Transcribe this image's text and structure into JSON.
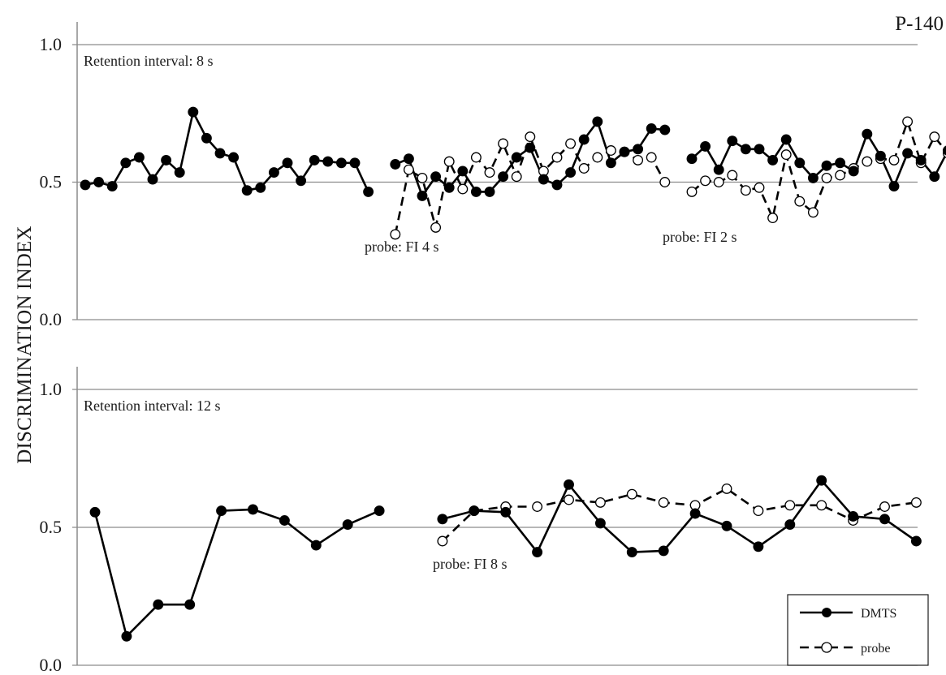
{
  "corner_label": "P-140",
  "ylabel": "DISCRIMINATION INDEX",
  "chart_data": [
    {
      "type": "line",
      "panel": "top",
      "ylim": [
        0,
        1.0
      ],
      "yticks": [
        "0.0",
        "0.5",
        "1.0"
      ],
      "grid": true,
      "annotations": {
        "title": "Retention interval: 8 s",
        "probe_labels": [
          "probe: FI 4 s",
          "probe: FI 2 s"
        ]
      },
      "series": [
        {
          "name": "DMTS",
          "segments": [
            [
              [
                1,
                0.49
              ],
              [
                2,
                0.5
              ],
              [
                3,
                0.485
              ],
              [
                4,
                0.57
              ],
              [
                5,
                0.59
              ],
              [
                6,
                0.51
              ],
              [
                7,
                0.58
              ],
              [
                8,
                0.535
              ],
              [
                9,
                0.755
              ],
              [
                10,
                0.66
              ],
              [
                11,
                0.605
              ],
              [
                12,
                0.59
              ],
              [
                13,
                0.47
              ],
              [
                14,
                0.48
              ],
              [
                15,
                0.535
              ],
              [
                16,
                0.57
              ],
              [
                17,
                0.505
              ],
              [
                18,
                0.58
              ],
              [
                19,
                0.575
              ],
              [
                20,
                0.57
              ],
              [
                21,
                0.57
              ],
              [
                22,
                0.465
              ]
            ],
            [
              [
                24,
                0.565
              ],
              [
                25,
                0.585
              ],
              [
                26,
                0.45
              ],
              [
                27,
                0.52
              ],
              [
                28,
                0.48
              ],
              [
                29,
                0.54
              ],
              [
                30,
                0.465
              ],
              [
                31,
                0.465
              ],
              [
                32,
                0.52
              ],
              [
                33,
                0.59
              ],
              [
                34,
                0.625
              ],
              [
                35,
                0.51
              ],
              [
                36,
                0.49
              ],
              [
                37,
                0.535
              ],
              [
                38,
                0.655
              ],
              [
                39,
                0.72
              ],
              [
                40,
                0.57
              ],
              [
                41,
                0.61
              ],
              [
                42,
                0.62
              ],
              [
                43,
                0.695
              ],
              [
                44,
                0.69
              ]
            ],
            [
              [
                46,
                0.585
              ],
              [
                47,
                0.63
              ],
              [
                48,
                0.545
              ],
              [
                49,
                0.65
              ],
              [
                50,
                0.62
              ],
              [
                51,
                0.62
              ],
              [
                52,
                0.58
              ],
              [
                53,
                0.655
              ],
              [
                54,
                0.57
              ],
              [
                55,
                0.515
              ],
              [
                56,
                0.56
              ],
              [
                57,
                0.57
              ],
              [
                58,
                0.54
              ],
              [
                59,
                0.675
              ],
              [
                60,
                0.595
              ],
              [
                61,
                0.485
              ],
              [
                62,
                0.605
              ],
              [
                63,
                0.58
              ],
              [
                64,
                0.52
              ],
              [
                65,
                0.615
              ]
            ]
          ]
        },
        {
          "name": "probe",
          "segments": [
            [
              [
                24,
                0.31
              ],
              [
                25,
                0.545
              ],
              [
                26,
                0.515
              ],
              [
                27,
                0.335
              ],
              [
                28,
                0.575
              ],
              [
                29,
                0.475
              ],
              [
                30,
                0.59
              ],
              [
                31,
                0.535
              ],
              [
                32,
                0.64
              ],
              [
                33,
                0.52
              ],
              [
                34,
                0.665
              ],
              [
                35,
                0.54
              ],
              [
                36,
                0.59
              ],
              [
                37,
                0.64
              ],
              [
                38,
                0.55
              ],
              [
                39,
                0.59
              ],
              [
                40,
                0.615
              ],
              [
                41,
                0.61
              ],
              [
                42,
                0.58
              ],
              [
                43,
                0.59
              ],
              [
                44,
                0.5
              ]
            ],
            [
              [
                46,
                0.465
              ],
              [
                47,
                0.505
              ],
              [
                48,
                0.5
              ],
              [
                49,
                0.525
              ],
              [
                50,
                0.47
              ],
              [
                51,
                0.48
              ],
              [
                52,
                0.37
              ],
              [
                53,
                0.6
              ],
              [
                54,
                0.43
              ],
              [
                55,
                0.39
              ],
              [
                56,
                0.515
              ],
              [
                57,
                0.525
              ],
              [
                58,
                0.55
              ],
              [
                59,
                0.575
              ],
              [
                60,
                0.585
              ],
              [
                61,
                0.58
              ],
              [
                62,
                0.72
              ],
              [
                63,
                0.57
              ],
              [
                64,
                0.665
              ],
              [
                65,
                0.605
              ]
            ]
          ]
        }
      ]
    },
    {
      "type": "line",
      "panel": "bottom",
      "ylim": [
        0,
        1.0
      ],
      "yticks": [
        "0.0",
        "0.5",
        "1.0"
      ],
      "grid": true,
      "annotations": {
        "title": "Retention interval: 12 s",
        "probe_labels": [
          "probe: FI 8 s"
        ]
      },
      "legend": {
        "placement": "bottom-right",
        "entries": [
          "DMTS",
          "probe"
        ]
      },
      "series": [
        {
          "name": "DMTS",
          "segments": [
            [
              [
                1,
                0.555
              ],
              [
                2,
                0.105
              ],
              [
                3,
                0.22
              ],
              [
                4,
                0.22
              ],
              [
                5,
                0.56
              ],
              [
                6,
                0.565
              ],
              [
                7,
                0.525
              ],
              [
                8,
                0.435
              ],
              [
                9,
                0.51
              ],
              [
                10,
                0.56
              ]
            ],
            [
              [
                12,
                0.53
              ],
              [
                13,
                0.56
              ],
              [
                14,
                0.555
              ],
              [
                15,
                0.41
              ],
              [
                16,
                0.655
              ],
              [
                17,
                0.515
              ],
              [
                18,
                0.41
              ],
              [
                19,
                0.415
              ],
              [
                20,
                0.55
              ],
              [
                21,
                0.505
              ],
              [
                22,
                0.43
              ],
              [
                23,
                0.51
              ],
              [
                24,
                0.67
              ],
              [
                25,
                0.54
              ],
              [
                26,
                0.53
              ],
              [
                27,
                0.45
              ]
            ]
          ]
        },
        {
          "name": "probe",
          "segments": [
            [
              [
                12,
                0.45
              ],
              [
                13,
                0.56
              ],
              [
                14,
                0.575
              ],
              [
                15,
                0.575
              ],
              [
                16,
                0.6
              ],
              [
                17,
                0.59
              ],
              [
                18,
                0.62
              ],
              [
                19,
                0.59
              ],
              [
                20,
                0.58
              ],
              [
                21,
                0.64
              ],
              [
                22,
                0.56
              ],
              [
                23,
                0.58
              ],
              [
                24,
                0.58
              ],
              [
                25,
                0.525
              ],
              [
                26,
                0.575
              ],
              [
                27,
                0.59
              ]
            ]
          ]
        }
      ]
    }
  ]
}
